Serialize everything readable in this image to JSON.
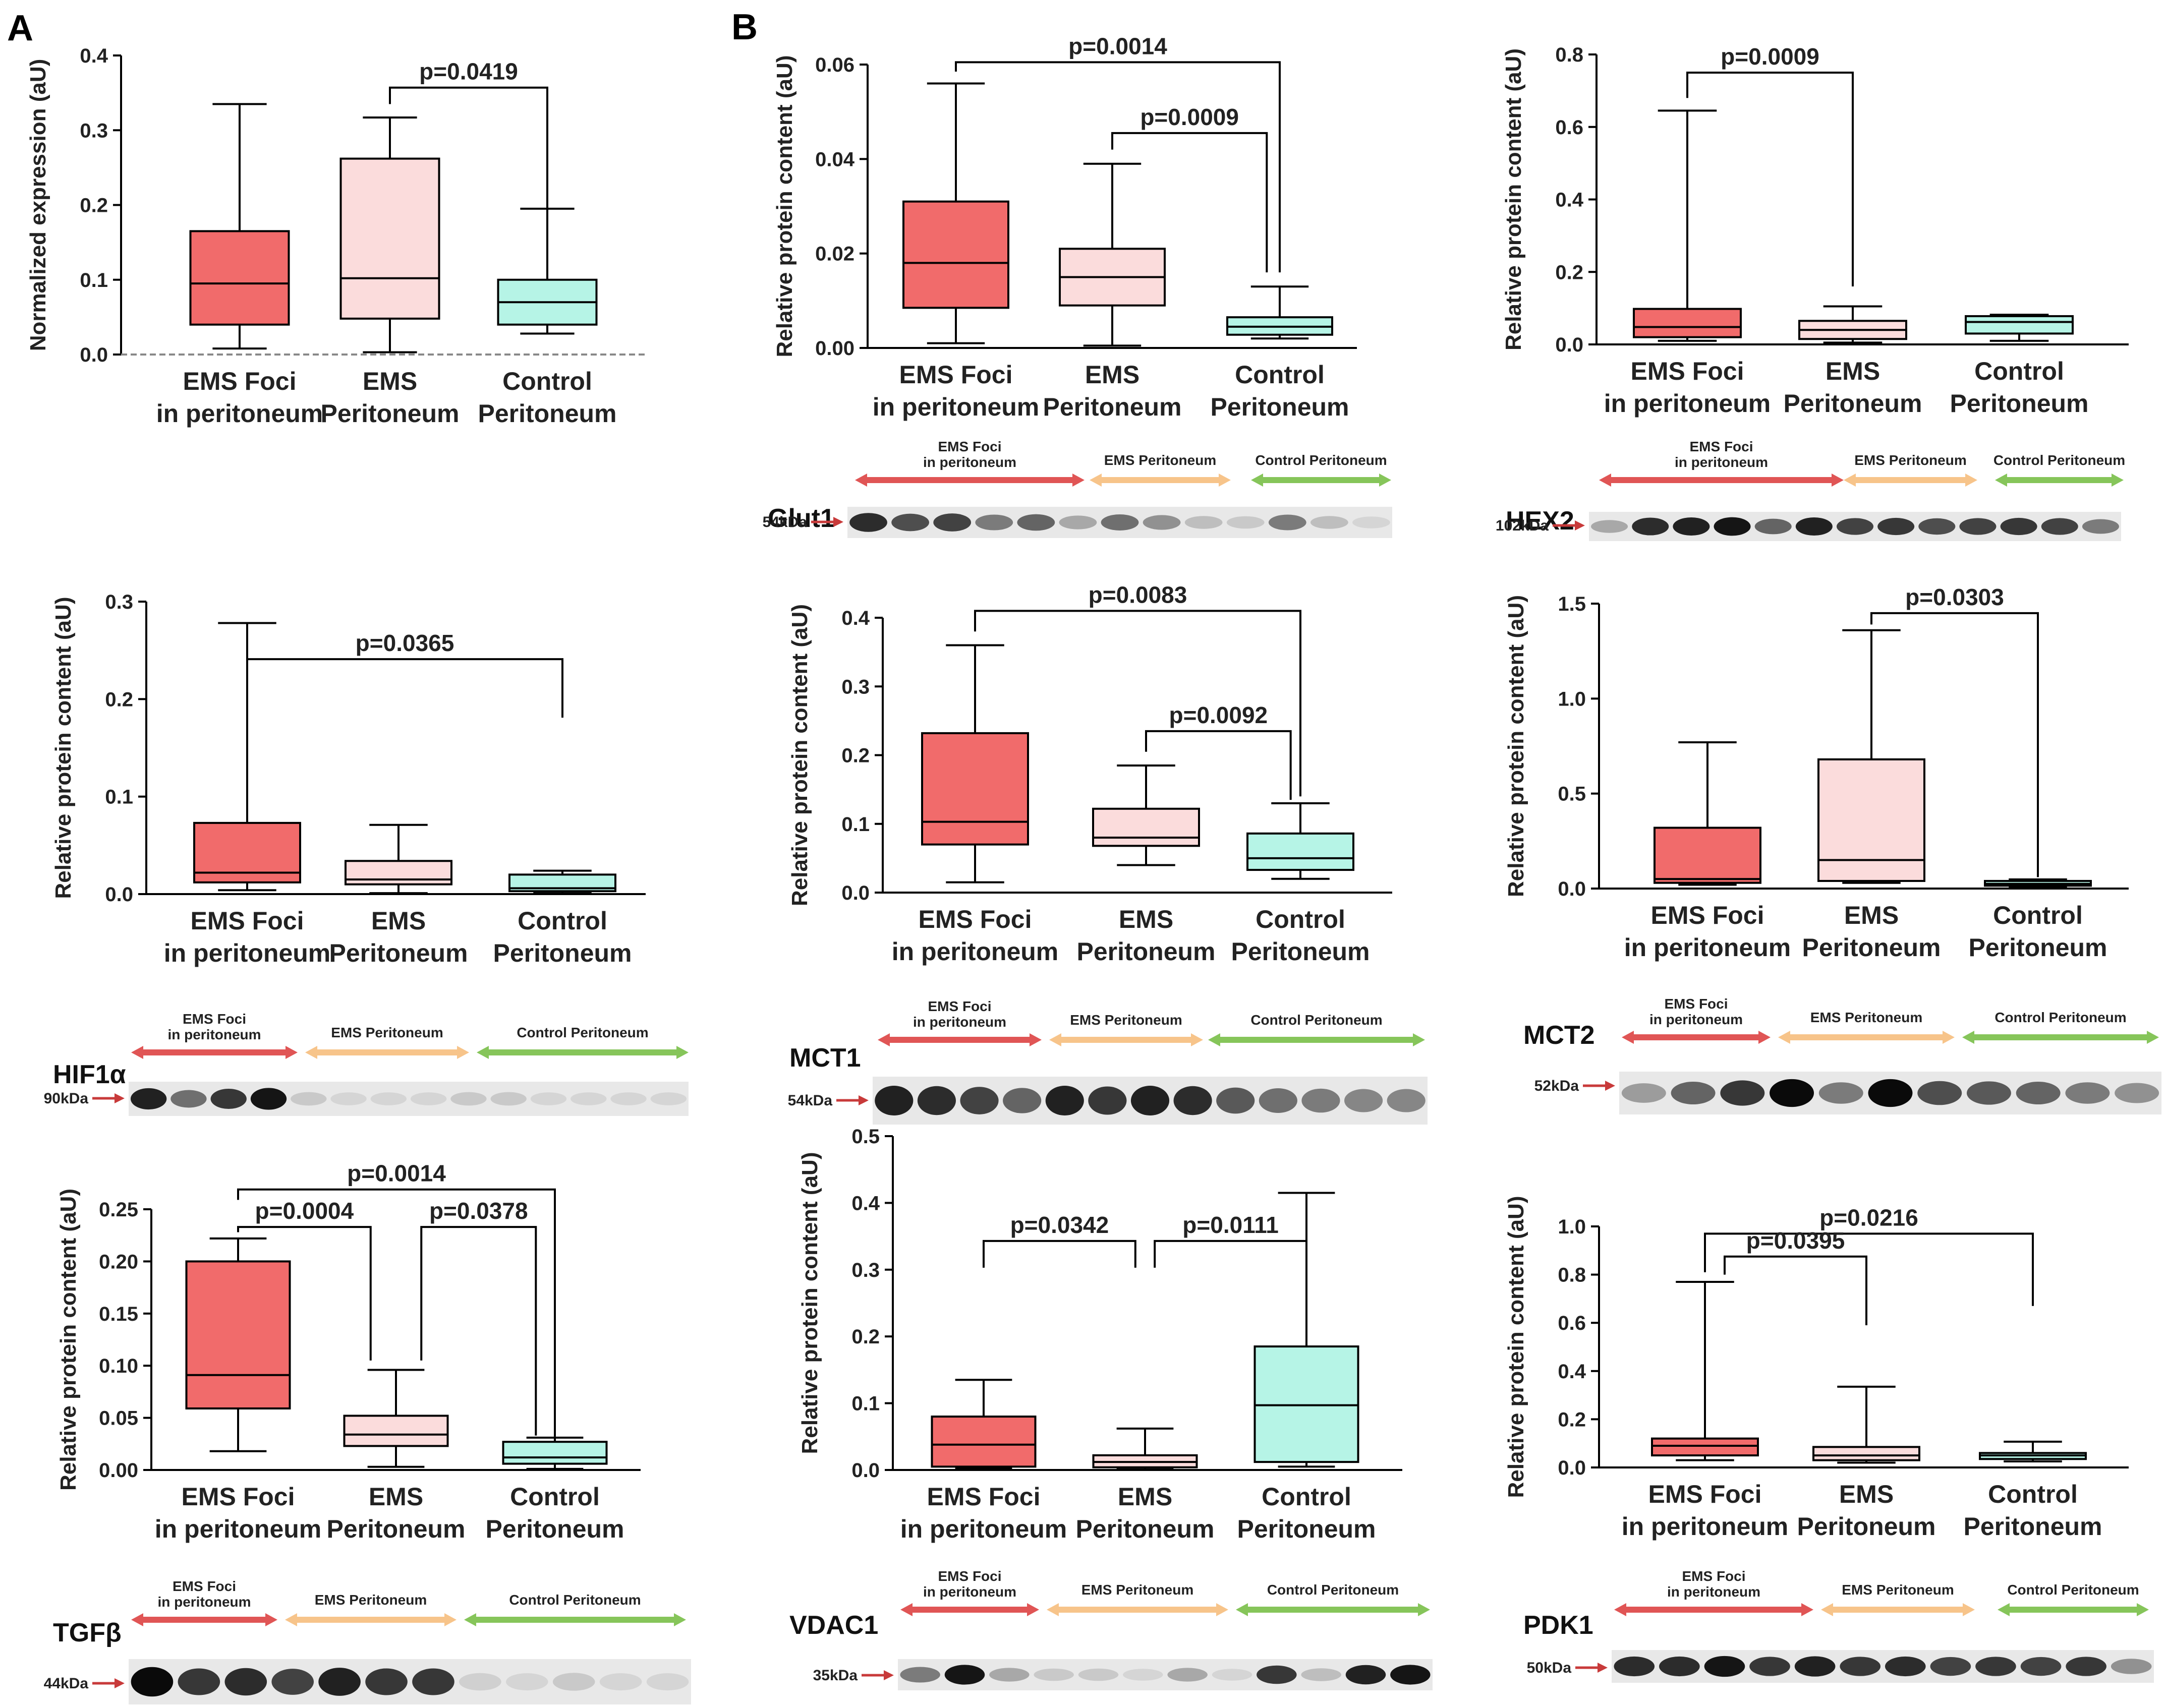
{
  "figure": {
    "panel_labels": [
      "A",
      "B"
    ],
    "group_categories": [
      [
        "EMS Foci",
        "in peritoneum"
      ],
      [
        "EMS",
        "Peritoneum"
      ],
      [
        "Control",
        "Peritoneum"
      ]
    ],
    "colors": {
      "ems_foci": "#f16b6b",
      "ems_peritoneum": "#fbdcdc",
      "control": "#b6f4e6"
    }
  },
  "chart_data": [
    {
      "id": "normalized",
      "type": "box",
      "ylabel": "Normalized expression (aU)",
      "ylim": [
        0,
        0.4
      ],
      "ticks": [
        "0.0",
        "0.1",
        "0.2",
        "0.3",
        "0.4"
      ],
      "dashed_zero": true,
      "boxes": [
        {
          "min": 0.008,
          "q1": 0.04,
          "median": 0.095,
          "q3": 0.165,
          "max": 0.335
        },
        {
          "min": 0.003,
          "q1": 0.048,
          "median": 0.102,
          "q3": 0.262,
          "max": 0.317
        },
        {
          "min": 0.028,
          "q1": 0.04,
          "median": 0.07,
          "q3": 0.1,
          "max": 0.195
        }
      ],
      "brackets": [
        {
          "from": 1,
          "to": 2,
          "y": 0.357,
          "label": "p=0.0419",
          "dleft": 0.022,
          "dright": 0.23
        }
      ]
    },
    {
      "id": "hif1a",
      "type": "box",
      "ylabel": "Relative protein content (aU)",
      "ylim": [
        0,
        0.3
      ],
      "ticks": [
        "0.0",
        "0.1",
        "0.2",
        "0.3"
      ],
      "boxes": [
        {
          "min": 0.004,
          "q1": 0.012,
          "median": 0.022,
          "q3": 0.073,
          "max": 0.278
        },
        {
          "min": 0.001,
          "q1": 0.01,
          "median": 0.015,
          "q3": 0.034,
          "max": 0.071
        },
        {
          "min": 0.001,
          "q1": 0.003,
          "median": 0.006,
          "q3": 0.02,
          "max": 0.024
        }
      ],
      "brackets": [
        {
          "from": 0,
          "to": 2,
          "y": 0.241,
          "label": "p=0.0365",
          "dleft": 0.02,
          "dright": 0.06
        }
      ]
    },
    {
      "id": "tgfb",
      "type": "box",
      "ylabel": "Relative protein content (aU)",
      "ylim": [
        0,
        0.25
      ],
      "ticks": [
        "0.00",
        "0.05",
        "0.10",
        "0.15",
        "0.20",
        "0.25"
      ],
      "boxes": [
        {
          "min": 0.018,
          "q1": 0.059,
          "median": 0.091,
          "q3": 0.2,
          "max": 0.222
        },
        {
          "min": 0.003,
          "q1": 0.023,
          "median": 0.034,
          "q3": 0.052,
          "max": 0.096
        },
        {
          "min": 0.001,
          "q1": 0.006,
          "median": 0.012,
          "q3": 0.027,
          "max": 0.031
        }
      ],
      "brackets": [
        {
          "from": 0,
          "to": 2,
          "y": 0.269,
          "label": "p=0.0014",
          "dleft": 0.01,
          "dright": 0.237
        },
        {
          "from": 0,
          "to": 1,
          "y": 0.233,
          "label": "p=0.0004",
          "dleft": 0.005,
          "dright": 0.128,
          "dx_right": -0.08
        },
        {
          "from": 1,
          "to": 2,
          "y": 0.233,
          "label": "p=0.0378",
          "dleft": 0.128,
          "dright": 0.2,
          "dx_left": 0.08,
          "dx_right": -0.06
        }
      ]
    },
    {
      "id": "glut1",
      "type": "box",
      "ylabel": "Relative protein content (aU)",
      "ylim": [
        0,
        0.06
      ],
      "ticks": [
        "0.00",
        "0.02",
        "0.04",
        "0.06"
      ],
      "boxes": [
        {
          "min": 0.001,
          "q1": 0.0085,
          "median": 0.018,
          "q3": 0.031,
          "max": 0.056
        },
        {
          "min": 0.0005,
          "q1": 0.009,
          "median": 0.015,
          "q3": 0.021,
          "max": 0.039
        },
        {
          "min": 0.002,
          "q1": 0.0028,
          "median": 0.0045,
          "q3": 0.0065,
          "max": 0.013
        }
      ],
      "brackets": [
        {
          "from": 0,
          "to": 2,
          "y": 0.0605,
          "label": "p=0.0014",
          "dleft": 0.002,
          "dright": 0.0445
        },
        {
          "from": 1,
          "to": 2,
          "y": 0.0455,
          "label": "p=0.0009",
          "dleft": 0.0035,
          "dright": 0.0295,
          "dx_right": -0.04
        }
      ]
    },
    {
      "id": "hex2",
      "type": "box",
      "ylabel": "Relative protein content (aU)",
      "ylim": [
        0,
        0.8
      ],
      "ticks": [
        "0.0",
        "0.2",
        "0.4",
        "0.6",
        "0.8"
      ],
      "boxes": [
        {
          "min": 0.01,
          "q1": 0.02,
          "median": 0.048,
          "q3": 0.098,
          "max": 0.645
        },
        {
          "min": 0.005,
          "q1": 0.015,
          "median": 0.04,
          "q3": 0.065,
          "max": 0.105
        },
        {
          "min": 0.01,
          "q1": 0.03,
          "median": 0.062,
          "q3": 0.078,
          "max": 0.082
        }
      ],
      "brackets": [
        {
          "from": 0,
          "to": 1,
          "y": 0.75,
          "label": "p=0.0009",
          "dleft": 0.07,
          "dright": 0.59
        }
      ]
    },
    {
      "id": "mct1",
      "type": "box",
      "ylabel": "Relative protein content (aU)",
      "ylim": [
        0,
        0.4
      ],
      "ticks": [
        "0.0",
        "0.1",
        "0.2",
        "0.3",
        "0.4"
      ],
      "boxes": [
        {
          "min": 0.015,
          "q1": 0.07,
          "median": 0.103,
          "q3": 0.232,
          "max": 0.36
        },
        {
          "min": 0.04,
          "q1": 0.068,
          "median": 0.08,
          "q3": 0.122,
          "max": 0.185
        },
        {
          "min": 0.02,
          "q1": 0.033,
          "median": 0.05,
          "q3": 0.086,
          "max": 0.13
        }
      ],
      "brackets": [
        {
          "from": 0,
          "to": 2,
          "y": 0.41,
          "label": "p=0.0083",
          "dleft": 0.03,
          "dright": 0.27
        },
        {
          "from": 1,
          "to": 2,
          "y": 0.235,
          "label": "p=0.0092",
          "dleft": 0.03,
          "dright": 0.1,
          "dx_right": -0.03
        }
      ]
    },
    {
      "id": "mct2",
      "type": "box",
      "ylabel": "Relative protein content (aU)",
      "ylim": [
        0,
        1.5
      ],
      "ticks": [
        "0.0",
        "0.5",
        "1.0",
        "1.5"
      ],
      "boxes": [
        {
          "min": 0.02,
          "q1": 0.03,
          "median": 0.05,
          "q3": 0.32,
          "max": 0.77
        },
        {
          "min": 0.03,
          "q1": 0.04,
          "median": 0.15,
          "q3": 0.68,
          "max": 1.36
        },
        {
          "min": 0.01,
          "q1": 0.015,
          "median": 0.025,
          "q3": 0.04,
          "max": 0.048
        }
      ],
      "brackets": [
        {
          "from": 1,
          "to": 2,
          "y": 1.45,
          "label": "p=0.0303",
          "dleft": 0.06,
          "dright": 1.39
        }
      ]
    },
    {
      "id": "vdac1",
      "type": "box",
      "ylabel": "Relative protein content (aU)",
      "ylim": [
        0,
        0.5
      ],
      "ticks": [
        "0.0",
        "0.1",
        "0.2",
        "0.3",
        "0.4",
        "0.5"
      ],
      "boxes": [
        {
          "min": 0.003,
          "q1": 0.005,
          "median": 0.038,
          "q3": 0.08,
          "max": 0.135
        },
        {
          "min": 0.001,
          "q1": 0.004,
          "median": 0.012,
          "q3": 0.022,
          "max": 0.062
        },
        {
          "min": 0.005,
          "q1": 0.012,
          "median": 0.097,
          "q3": 0.185,
          "max": 0.415
        }
      ],
      "brackets": [
        {
          "from": 0,
          "to": 1,
          "y": 0.343,
          "label": "p=0.0342",
          "dleft": 0.04,
          "dright": 0.04,
          "dx_right": -0.03
        },
        {
          "from": 1,
          "to": 2,
          "y": 0.343,
          "label": "p=0.0111",
          "dleft": 0.04,
          "dright": 0.0,
          "dx_left": 0.03
        }
      ]
    },
    {
      "id": "pdk1",
      "type": "box",
      "ylabel": "Relative protein content (aU)",
      "ylim": [
        0,
        1.0
      ],
      "ticks": [
        "0.0",
        "0.2",
        "0.4",
        "0.6",
        "0.8",
        "1.0"
      ],
      "boxes": [
        {
          "min": 0.03,
          "q1": 0.05,
          "median": 0.09,
          "q3": 0.12,
          "max": 0.77
        },
        {
          "min": 0.02,
          "q1": 0.03,
          "median": 0.05,
          "q3": 0.085,
          "max": 0.335
        },
        {
          "min": 0.025,
          "q1": 0.035,
          "median": 0.05,
          "q3": 0.06,
          "max": 0.107
        }
      ],
      "brackets": [
        {
          "from": 0,
          "to": 2,
          "y": 0.97,
          "label": "p=0.0216",
          "dleft": 0.16,
          "dright": 0.3
        },
        {
          "from": 0,
          "to": 1,
          "y": 0.875,
          "label": "p=0.0395",
          "dleft": 0.075,
          "dright": 0.285,
          "dx_left": 0.06
        }
      ]
    }
  ],
  "blots": [
    {
      "id": "glut1",
      "protein": "Glut1",
      "kda": "54kDa",
      "groups": [
        "EMS Foci in peritoneum",
        "EMS Peritoneum",
        "Control Peritoneum"
      ],
      "lanes": [
        [
          3,
          2
        ],
        [
          3,
          1
        ],
        [
          3,
          0
        ]
      ],
      "intensity": [
        [
          0.85,
          0.7,
          0.75,
          0.5,
          0.6
        ],
        [
          0.3,
          0.55,
          0.4,
          0.2
        ],
        [
          0.15,
          0.5,
          0.2,
          0.1
        ]
      ]
    },
    {
      "id": "hex2",
      "protein": "HEX2",
      "kda": "102kDa",
      "groups": [
        "EMS Foci in peritoneum",
        "EMS Peritoneum",
        "Control Peritoneum"
      ],
      "intensity": [
        [
          0.3,
          0.85,
          0.9,
          0.95,
          0.6,
          0.9
        ],
        [
          0.75,
          0.8,
          0.7,
          0.75
        ],
        [
          0.8,
          0.75,
          0.5
        ]
      ]
    },
    {
      "id": "hif1a",
      "protein": "HIF1α",
      "kda": "90kDa",
      "groups": [
        "EMS Foci in peritoneum",
        "EMS Peritoneum",
        "Control Peritoneum"
      ],
      "intensity": [
        [
          0.9,
          0.55,
          0.8,
          0.95
        ],
        [
          0.15,
          0.1,
          0.1,
          0.1
        ],
        [
          0.15,
          0.15,
          0.1,
          0.1,
          0.1,
          0.1
        ]
      ]
    },
    {
      "id": "mct1",
      "protein": "MCT1",
      "kda": "54kDa",
      "groups": [
        "EMS Foci in peritoneum",
        "EMS Peritoneum",
        "Control Peritoneum"
      ],
      "intensity": [
        [
          0.9,
          0.85,
          0.75,
          0.6
        ],
        [
          0.9,
          0.8,
          0.9,
          0.85
        ],
        [
          0.65,
          0.55,
          0.5,
          0.45,
          0.45
        ]
      ]
    },
    {
      "id": "mct2",
      "protein": "MCT2",
      "kda": "52kDa",
      "groups": [
        "EMS Foci in peritoneum",
        "EMS Peritoneum",
        "Control Peritoneum"
      ],
      "intensity": [
        [
          0.35,
          0.6,
          0.8,
          1.0
        ],
        [
          0.5,
          1.0,
          0.7
        ],
        [
          0.65,
          0.6,
          0.5,
          0.4
        ]
      ]
    },
    {
      "id": "tgfb",
      "protein": "TGFβ",
      "kda": "44kDa",
      "groups": [
        "EMS Foci in peritoneum",
        "EMS Peritoneum",
        "Control Peritoneum"
      ],
      "intensity": [
        [
          1.0,
          0.8,
          0.85
        ],
        [
          0.75,
          0.9,
          0.8,
          0.8
        ],
        [
          0.12,
          0.1,
          0.15,
          0.1,
          0.1
        ]
      ]
    },
    {
      "id": "vdac1",
      "protein": "VDAC1",
      "kda": "35kDa",
      "groups": [
        "EMS Foci in peritoneum",
        "EMS Peritoneum",
        "Control Peritoneum"
      ],
      "intensity": [
        [
          0.5,
          0.95,
          0.3,
          0.15
        ],
        [
          0.15,
          0.1,
          0.3,
          0.1
        ],
        [
          0.8,
          0.2,
          0.9,
          0.95
        ]
      ]
    },
    {
      "id": "pdk1",
      "protein": "PDK1",
      "kda": "50kDa",
      "groups": [
        "EMS Foci in peritoneum",
        "EMS Peritoneum",
        "Control Peritoneum"
      ],
      "intensity": [
        [
          0.85,
          0.85,
          0.95,
          0.8,
          0.9
        ],
        [
          0.8,
          0.85,
          0.75,
          0.8
        ],
        [
          0.75,
          0.8,
          0.4
        ]
      ]
    }
  ]
}
